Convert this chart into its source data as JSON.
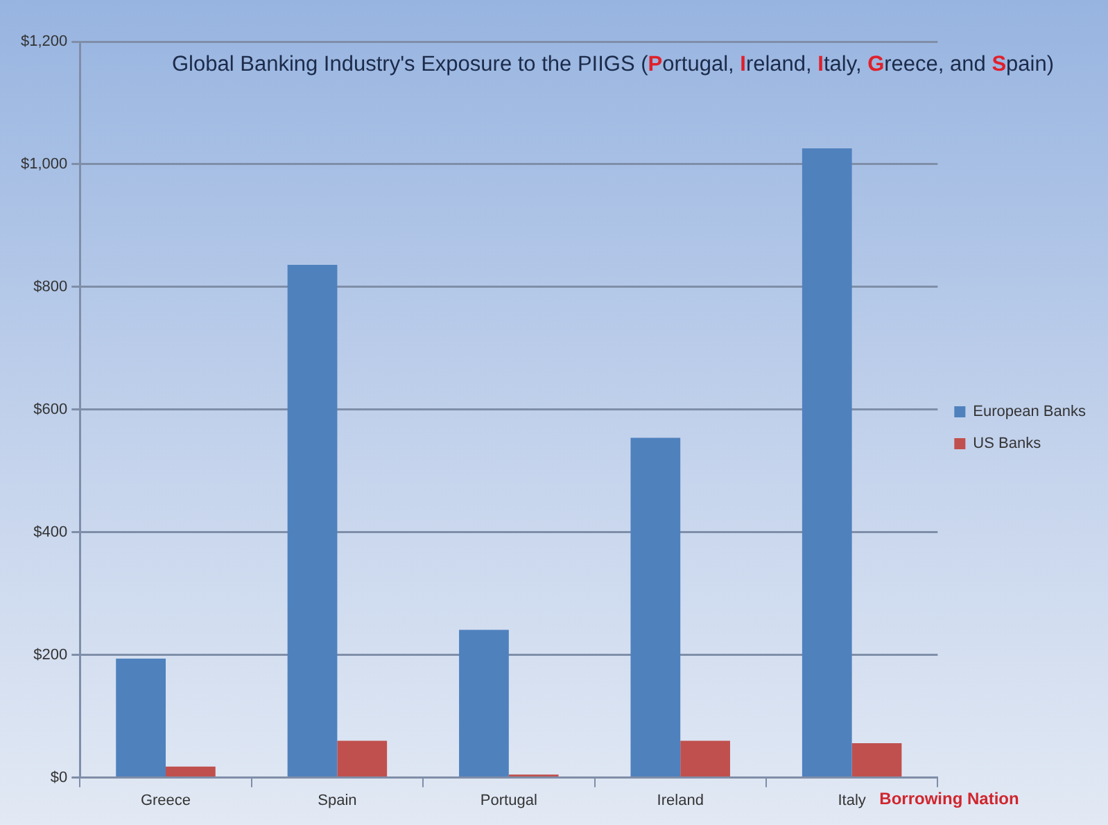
{
  "chart_data": {
    "type": "bar",
    "title": "Global Banking Industry's Exposure to the PIIGS (Portugal, Ireland, Italy, Greece, and Spain)",
    "xlabel": "Borrowing Nation",
    "categories": [
      "Greece",
      "Spain",
      "Portugal",
      "Ireland",
      "Italy"
    ],
    "series": [
      {
        "name": "European Banks",
        "color": "#4f81bd",
        "values": [
          194,
          836,
          241,
          554,
          1026
        ]
      },
      {
        "name": "US Banks",
        "color": "#c0504d",
        "values": [
          18,
          60,
          5,
          60,
          56
        ]
      }
    ],
    "ylim": [
      0,
      1200
    ],
    "yticks": [
      {
        "value": 0,
        "label": "$0"
      },
      {
        "value": 200,
        "label": "$200"
      },
      {
        "value": 400,
        "label": "$400"
      },
      {
        "value": 600,
        "label": "$600"
      },
      {
        "value": 800,
        "label": "$800"
      },
      {
        "value": 1000,
        "label": "$1,000"
      },
      {
        "value": 1200,
        "label": "$1,200"
      }
    ],
    "grid": "y",
    "legend": "right"
  }
}
